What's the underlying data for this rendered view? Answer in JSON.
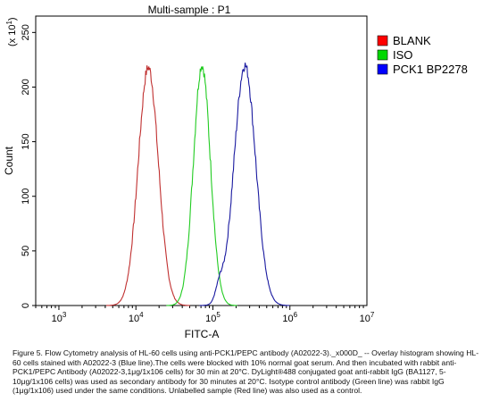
{
  "chart_data": {
    "type": "line",
    "title": "Multi-sample : P1",
    "xlabel": "FITC-A",
    "ylabel": "Count",
    "yscale_note": "(x 10",
    "yscale_exp": "1",
    "yscale_close": ")",
    "xscale": "log",
    "xlim": [
      500,
      10000000
    ],
    "ylim": [
      0,
      265
    ],
    "x_ticks": [
      {
        "base": "10",
        "exp": "3",
        "value": 1000
      },
      {
        "base": "10",
        "exp": "4",
        "value": 10000
      },
      {
        "base": "10",
        "exp": "5",
        "value": 100000
      },
      {
        "base": "10",
        "exp": "6",
        "value": 1000000
      },
      {
        "base": "10",
        "exp": "7",
        "value": 10000000
      }
    ],
    "y_ticks": [
      0,
      50,
      100,
      150,
      200,
      250
    ],
    "legend_position": "top-right",
    "series": [
      {
        "name": "BLANK",
        "color": "#ff0000",
        "stroke": "#c03030",
        "peak_x": 14500,
        "peak_y": 218,
        "log_sigma": 0.13
      },
      {
        "name": "ISO",
        "color": "#00d800",
        "stroke": "#22cc22",
        "peak_x": 72000,
        "peak_y": 220,
        "log_sigma": 0.11
      },
      {
        "name": "PCK1 BP2278",
        "color": "#0000ff",
        "stroke": "#1a1aa0",
        "peak_x": 260000,
        "peak_y": 220,
        "log_sigma": 0.14
      }
    ]
  },
  "caption": "Figure 5. Flow Cytometry analysis of HL-60 cells using anti-PCK1/PEPC antibody (A02022-3)._x000D_ -- Overlay histogram showing HL-60 cells stained with A02022-3 (Blue line).The cells were blocked with 10% normal goat serum. And then incubated with rabbit anti-PCK1/PEPC Antibody (A02022-3,1μg/1x106 cells) for 30 min at 20°C. DyLight®488 conjugated goat anti-rabbit IgG (BA1127, 5-10μg/1x106 cells) was used as secondary antibody for 30 minutes at 20°C. Isotype control antibody (Green line) was rabbit IgG (1μg/1x106) used under the same conditions. Unlabelled sample (Red line) was also used as a control."
}
